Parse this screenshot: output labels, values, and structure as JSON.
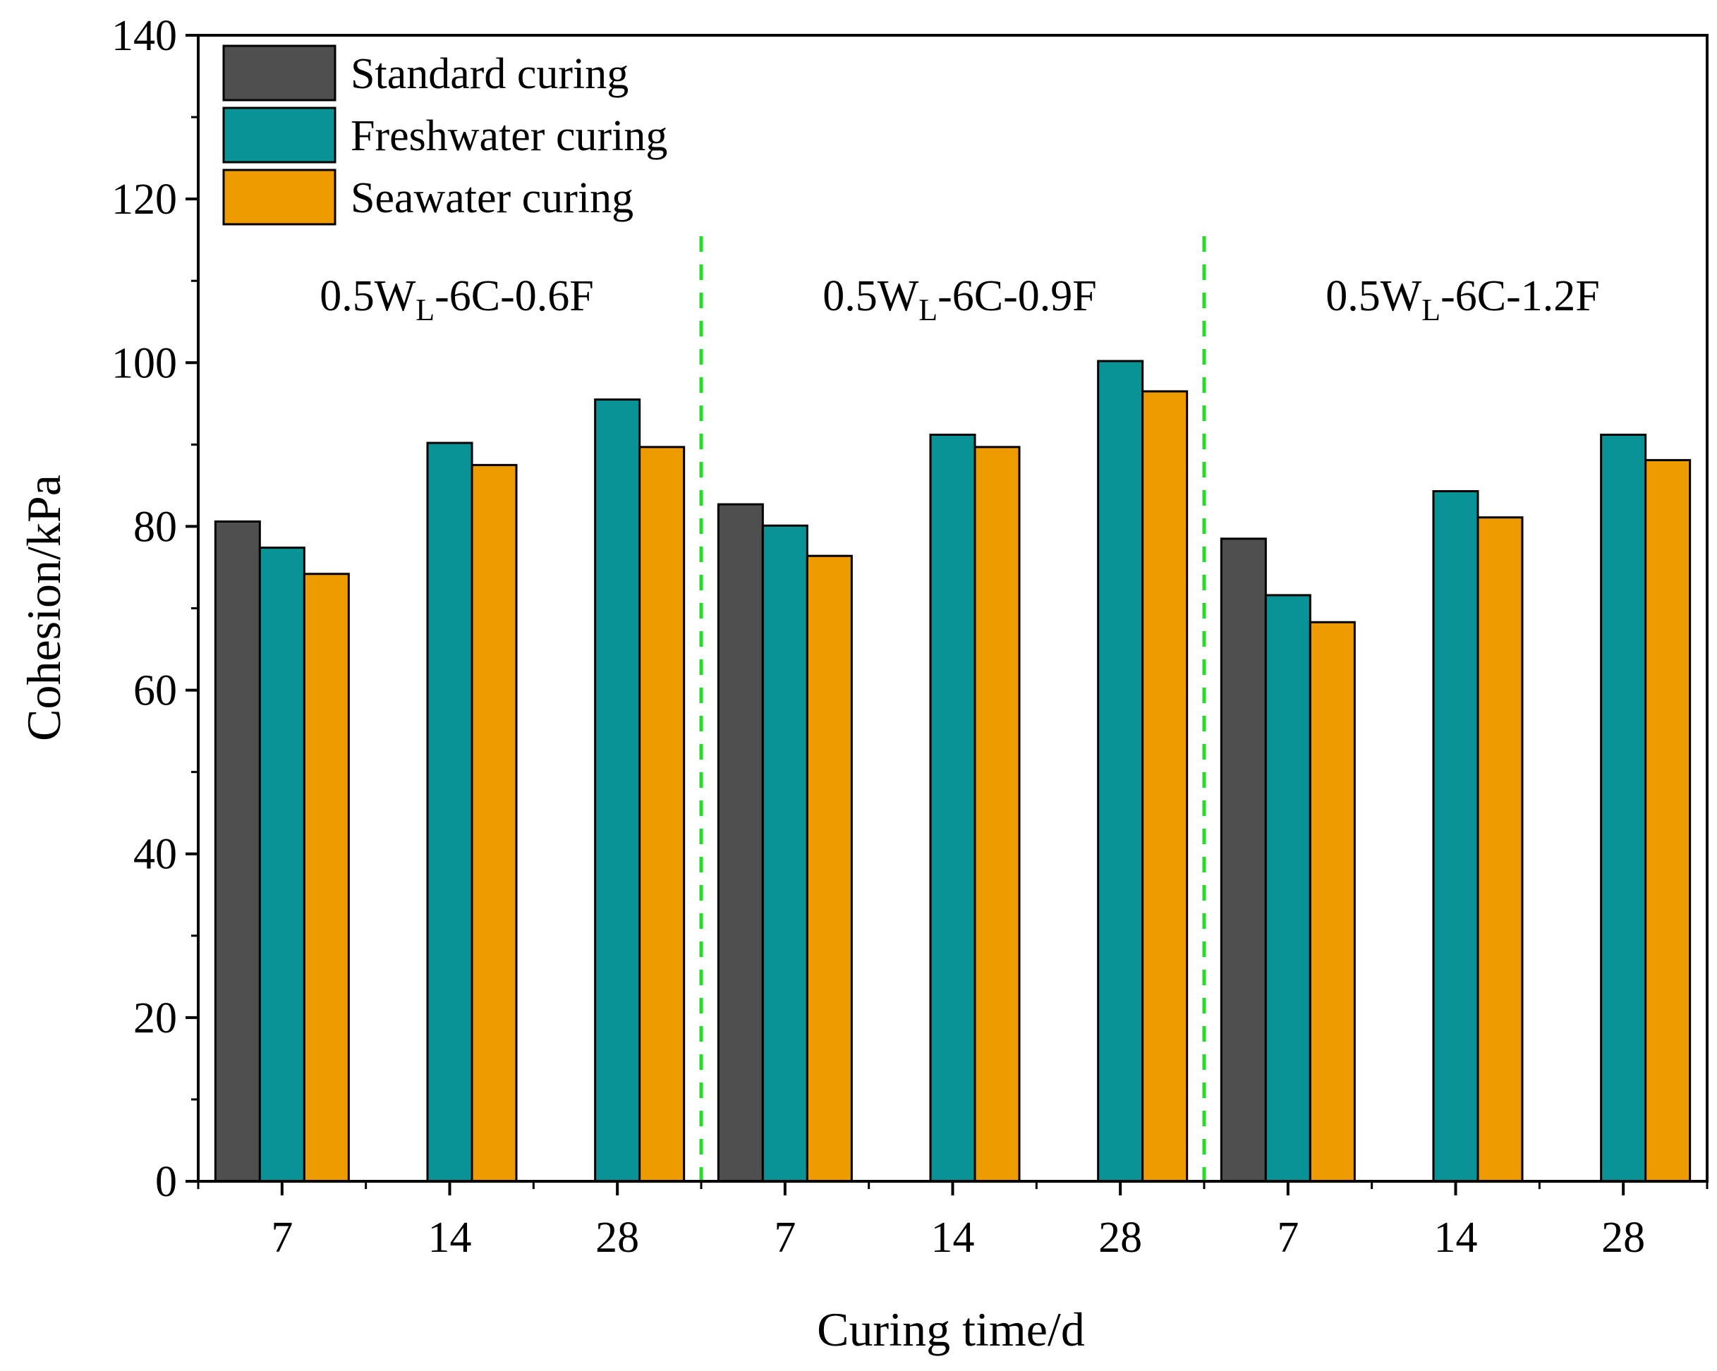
{
  "chart_data": {
    "type": "bar",
    "xlabel": "Curing time/d",
    "ylabel": "Cohesion/kPa",
    "ylim": [
      0,
      140
    ],
    "yticks": [
      0,
      20,
      40,
      60,
      80,
      100,
      120,
      140
    ],
    "legend_position": "top-left",
    "groups": [
      {
        "label_main": "0.5W",
        "label_sub": "L",
        "label_rest": "-6C-0.6F",
        "color": "#ff0000",
        "categories": [
          "7",
          "14",
          "28"
        ]
      },
      {
        "label_main": "0.5W",
        "label_sub": "L",
        "label_rest": "-6C-0.9F",
        "color": "#ff0000",
        "categories": [
          "7",
          "14",
          "28"
        ]
      },
      {
        "label_main": "0.5W",
        "label_sub": "L",
        "label_rest": "-6C-1.2F",
        "color": "#ff0000",
        "categories": [
          "7",
          "14",
          "28"
        ]
      }
    ],
    "series": [
      {
        "name": "Standard curing",
        "color": "#4f4f4f",
        "values": [
          80.6,
          null,
          null,
          82.7,
          null,
          null,
          78.5,
          null,
          null
        ]
      },
      {
        "name": "Freshwater curing",
        "color": "#0a9396",
        "values": [
          77.4,
          90.2,
          95.5,
          80.1,
          91.2,
          100.2,
          71.6,
          84.3,
          91.2
        ]
      },
      {
        "name": "Seawater curing",
        "color": "#ee9b00",
        "values": [
          74.2,
          87.5,
          89.7,
          76.4,
          89.7,
          96.5,
          68.3,
          81.1,
          88.1
        ]
      }
    ],
    "separator_color": "#22dd22"
  }
}
